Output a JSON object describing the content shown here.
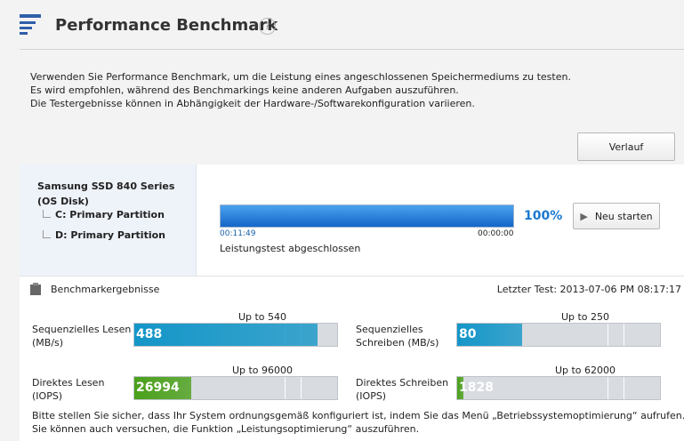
{
  "header": {
    "title": "Performance Benchmark",
    "help": "?"
  },
  "description": [
    "Verwenden Sie Performance Benchmark, um die Leistung eines angeschlossenen Speichermediums zu testen.",
    "Es wird empfohlen, während des Benchmarkings keine anderen Aufgaben auszuführen.",
    "Die Testergebnisse können in Abhängigkeit der Hardware-/Softwarekonfiguration variieren."
  ],
  "history_button": "Verlauf",
  "drive": {
    "name": "Samsung SSD 840 Series",
    "sub": "(OS Disk)",
    "partitions": [
      "C: Primary Partition",
      "D: Primary Partition"
    ]
  },
  "progress": {
    "percent": {
      "value": 100,
      "label": "100%"
    },
    "elapsed": "00:11:49",
    "remaining": "00:00:00",
    "status": "Leistungstest abgeschlossen",
    "button": "Neu starten"
  },
  "results": {
    "title": "Benchmarkergebnisse",
    "last_test": "Letzter Test: 2013-07-06 PM 08:17:17",
    "metrics": [
      {
        "label": [
          "Sequenzielles Lesen",
          "(MB/s)"
        ],
        "value": 488,
        "max": {
          "value": 540,
          "label": "Up to 540"
        },
        "color": "#1496c8"
      },
      {
        "label": [
          "Sequenzielles",
          "Schreiben (MB/s)"
        ],
        "value": 80,
        "max": {
          "value": 250,
          "label": "Up to 250"
        },
        "color": "#1496c8"
      },
      {
        "label": [
          "Direktes Lesen",
          "(IOPS)"
        ],
        "value": 26994,
        "max": {
          "value": 96000,
          "label": "Up to 96000"
        },
        "color": "#4aa01a"
      },
      {
        "label": [
          "Direktes Schreiben",
          "(IOPS)"
        ],
        "value": 1828,
        "max": {
          "value": 62000,
          "label": "Up to 62000"
        },
        "color": "#4aa01a"
      }
    ]
  },
  "notes": [
    "Bitte stellen Sie sicher, dass Ihr System ordnungsgemäß konfiguriert ist, indem Sie das Menü „Betriebssystemoptimierung“ aufrufen.",
    "Sie können auch versuchen, die Funktion „Leistungsoptimierung“ auszuführen."
  ]
}
